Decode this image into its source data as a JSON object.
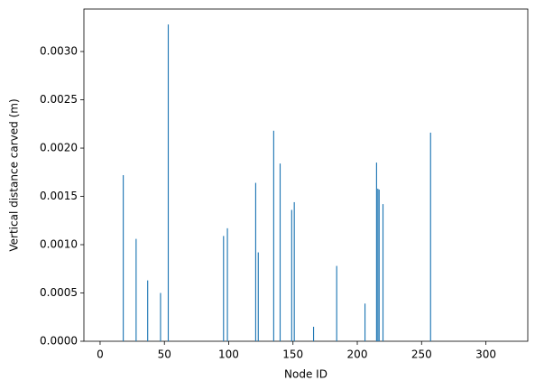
{
  "chart_data": {
    "type": "bar",
    "x_label": "Node ID",
    "y_label": "Vertical distance carved (m)",
    "x": [
      18,
      28,
      37,
      47,
      53,
      96,
      99,
      121,
      123,
      135,
      140,
      149,
      151,
      166,
      184,
      206,
      215,
      216,
      217,
      220,
      257
    ],
    "values": [
      0.00172,
      0.00106,
      0.00063,
      0.0005,
      0.00328,
      0.00109,
      0.00117,
      0.00164,
      0.00092,
      0.00218,
      0.00184,
      0.00136,
      0.00144,
      0.00015,
      0.00078,
      0.00039,
      0.00185,
      0.00158,
      0.00157,
      0.00142,
      0.00216
    ],
    "color": "#1f77b4",
    "bar_width": 0.8,
    "xlim": [
      -12.6,
      332.6
    ],
    "ylim": [
      0,
      0.00344
    ],
    "xticks": [
      0,
      50,
      100,
      150,
      200,
      250,
      300
    ],
    "yticks": [
      {
        "value": 0,
        "label": "0.0000"
      },
      {
        "value": 0.0005,
        "label": "0.0005"
      },
      {
        "value": 0.001,
        "label": "0.0010"
      },
      {
        "value": 0.0015,
        "label": "0.0015"
      },
      {
        "value": 0.002,
        "label": "0.0020"
      },
      {
        "value": 0.0025,
        "label": "0.0025"
      },
      {
        "value": 0.003,
        "label": "0.0030"
      }
    ],
    "grid": false
  }
}
